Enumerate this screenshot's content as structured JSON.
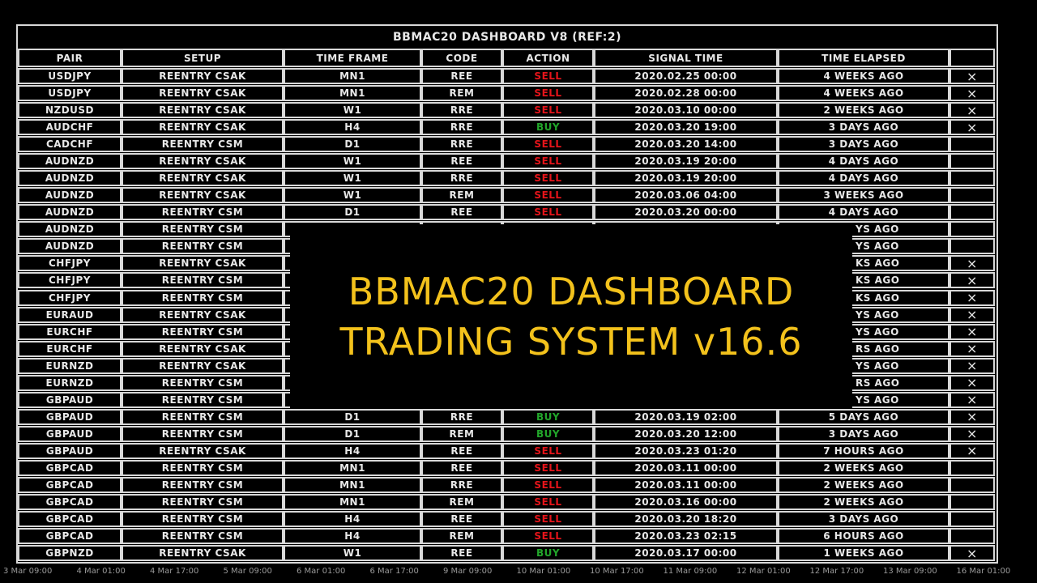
{
  "table": {
    "title": "BBMAC20 DASHBOARD V8 (REF:2)",
    "headers": [
      "PAIR",
      "SETUP",
      "TIME FRAME",
      "CODE",
      "ACTION",
      "SIGNAL TIME",
      "TIME ELAPSED"
    ],
    "action_colors": {
      "SELL": "#e4141a",
      "BUY": "#22a52a"
    },
    "rows": [
      [
        "USDJPY",
        "REENTRY CSAK",
        "MN1",
        "REE",
        "SELL",
        "2020.02.25 00:00",
        "4 WEEKS AGO",
        "×"
      ],
      [
        "USDJPY",
        "REENTRY CSAK",
        "MN1",
        "REM",
        "SELL",
        "2020.02.28 00:00",
        "4 WEEKS AGO",
        "×"
      ],
      [
        "NZDUSD",
        "REENTRY CSAK",
        "W1",
        "RRE",
        "SELL",
        "2020.03.10 00:00",
        "2 WEEKS AGO",
        "×"
      ],
      [
        "AUDCHF",
        "REENTRY CSAK",
        "H4",
        "RRE",
        "BUY",
        "2020.03.20 19:00",
        "3 DAYS AGO",
        "×"
      ],
      [
        "CADCHF",
        "REENTRY CSM",
        "D1",
        "RRE",
        "SELL",
        "2020.03.20 14:00",
        "3 DAYS AGO",
        null
      ],
      [
        "AUDNZD",
        "REENTRY CSAK",
        "W1",
        "REE",
        "SELL",
        "2020.03.19 20:00",
        "4 DAYS AGO",
        null
      ],
      [
        "AUDNZD",
        "REENTRY CSAK",
        "W1",
        "RRE",
        "SELL",
        "2020.03.19 20:00",
        "4 DAYS AGO",
        null
      ],
      [
        "AUDNZD",
        "REENTRY CSAK",
        "W1",
        "REM",
        "SELL",
        "2020.03.06 04:00",
        "3 WEEKS AGO",
        null
      ],
      [
        "AUDNZD",
        "REENTRY CSM",
        "D1",
        "REE",
        "SELL",
        "2020.03.20 00:00",
        "4 DAYS AGO",
        null
      ],
      [
        "AUDNZD",
        "REENTRY CSM",
        null,
        null,
        null,
        null,
        "YS AGO",
        null
      ],
      [
        "AUDNZD",
        "REENTRY CSM",
        null,
        null,
        null,
        null,
        "YS AGO",
        null
      ],
      [
        "CHFJPY",
        "REENTRY CSAK",
        null,
        null,
        null,
        null,
        "KS AGO",
        "×"
      ],
      [
        "CHFJPY",
        "REENTRY CSM",
        null,
        null,
        null,
        null,
        "KS AGO",
        "×"
      ],
      [
        "CHFJPY",
        "REENTRY CSM",
        null,
        null,
        null,
        null,
        "KS AGO",
        "×"
      ],
      [
        "EURAUD",
        "REENTRY CSAK",
        null,
        null,
        null,
        null,
        "YS AGO",
        "×"
      ],
      [
        "EURCHF",
        "REENTRY CSM",
        null,
        null,
        null,
        null,
        "YS AGO",
        "×"
      ],
      [
        "EURCHF",
        "REENTRY CSAK",
        null,
        null,
        null,
        null,
        "RS AGO",
        "×"
      ],
      [
        "EURNZD",
        "REENTRY CSAK",
        null,
        null,
        null,
        null,
        "YS AGO",
        "×"
      ],
      [
        "EURNZD",
        "REENTRY CSM",
        null,
        null,
        null,
        null,
        "RS AGO",
        "×"
      ],
      [
        "GBPAUD",
        "REENTRY CSM",
        null,
        null,
        null,
        null,
        "YS AGO",
        "×"
      ],
      [
        "GBPAUD",
        "REENTRY CSM",
        "D1",
        "RRE",
        "BUY",
        "2020.03.19 02:00",
        "5 DAYS AGO",
        "×"
      ],
      [
        "GBPAUD",
        "REENTRY CSM",
        "D1",
        "REM",
        "BUY",
        "2020.03.20 12:00",
        "3 DAYS AGO",
        "×"
      ],
      [
        "GBPAUD",
        "REENTRY CSAK",
        "H4",
        "REE",
        "SELL",
        "2020.03.23 01:20",
        "7 HOURS AGO",
        "×"
      ],
      [
        "GBPCAD",
        "REENTRY CSM",
        "MN1",
        "REE",
        "SELL",
        "2020.03.11 00:00",
        "2 WEEKS AGO",
        null
      ],
      [
        "GBPCAD",
        "REENTRY CSM",
        "MN1",
        "RRE",
        "SELL",
        "2020.03.11 00:00",
        "2 WEEKS AGO",
        null
      ],
      [
        "GBPCAD",
        "REENTRY CSM",
        "MN1",
        "REM",
        "SELL",
        "2020.03.16 00:00",
        "2 WEEKS AGO",
        null
      ],
      [
        "GBPCAD",
        "REENTRY CSM",
        "H4",
        "REE",
        "SELL",
        "2020.03.20 18:20",
        "3 DAYS AGO",
        null
      ],
      [
        "GBPCAD",
        "REENTRY CSM",
        "H4",
        "REM",
        "SELL",
        "2020.03.23 02:15",
        "6 HOURS AGO",
        null
      ],
      [
        "GBPNZD",
        "REENTRY CSAK",
        "W1",
        "REE",
        "BUY",
        "2020.03.17 00:00",
        "1 WEEKS AGO",
        "×"
      ]
    ]
  },
  "overlay": {
    "lines": [
      "BBMAC20 DASHBOARD",
      "TRADING SYSTEM v16.6"
    ]
  },
  "axis_labels": [
    "3 Mar 09:00",
    "4 Mar 01:00",
    "4 Mar 17:00",
    "5 Mar 09:00",
    "6 Mar 01:00",
    "6 Mar 17:00",
    "9 Mar 09:00",
    "10 Mar 01:00",
    "10 Mar 17:00",
    "11 Mar 09:00",
    "12 Mar 01:00",
    "12 Mar 17:00",
    "13 Mar 09:00",
    "16 Mar 01:00"
  ]
}
